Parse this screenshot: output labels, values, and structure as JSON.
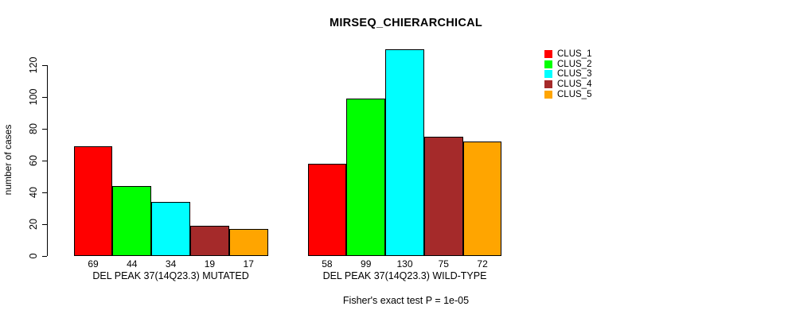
{
  "chart_data": {
    "type": "bar",
    "title": "MIRSEQ_CHIERARCHICAL",
    "ylabel": "number of cases",
    "xlabel": "",
    "ylim": [
      0,
      130
    ],
    "yticks": [
      0,
      20,
      40,
      60,
      80,
      100,
      120
    ],
    "grid": false,
    "legend_position": "right-outside-top",
    "categories": [
      "DEL PEAK 37(14Q23.3) MUTATED",
      "DEL PEAK 37(14Q23.3) WILD-TYPE"
    ],
    "series": [
      {
        "name": "CLUS_1",
        "color": "#FF0000",
        "values": [
          69,
          58
        ]
      },
      {
        "name": "CLUS_2",
        "color": "#00FF00",
        "values": [
          44,
          99
        ]
      },
      {
        "name": "CLUS_3",
        "color": "#00FFFF",
        "values": [
          34,
          130
        ]
      },
      {
        "name": "CLUS_4",
        "color": "#A52A2A",
        "values": [
          19,
          75
        ]
      },
      {
        "name": "CLUS_5",
        "color": "#FFA500",
        "values": [
          17,
          72
        ]
      }
    ],
    "bar_value_labels": [
      [
        69,
        44,
        34,
        19,
        17
      ],
      [
        58,
        99,
        130,
        75,
        72
      ]
    ],
    "annotation": "Fisher's exact test P = 1e-05"
  }
}
